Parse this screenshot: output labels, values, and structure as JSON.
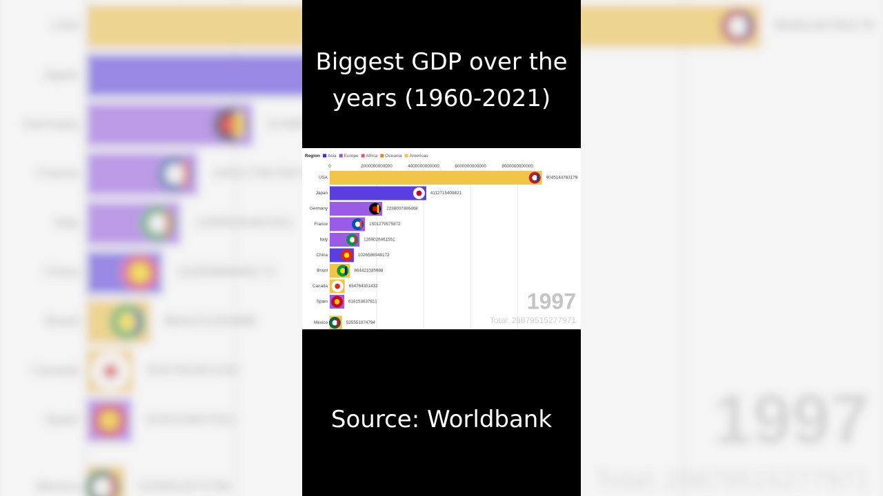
{
  "title": "Biggest GDP over the years (1960-2021)",
  "source": "Source: Worldbank",
  "chart_data": {
    "type": "bar",
    "orientation": "horizontal",
    "legend_title": "Region",
    "legend": [
      {
        "name": "Asia",
        "color": "#3a2fd0"
      },
      {
        "name": "Europe",
        "color": "#8f55e0"
      },
      {
        "name": "Africa",
        "color": "#e2577a"
      },
      {
        "name": "Oceania",
        "color": "#e8831f"
      },
      {
        "name": "Americas",
        "color": "#f2c447"
      }
    ],
    "categories": [
      "USA",
      "Japan",
      "Germany",
      "France",
      "Italy",
      "China",
      "Brazil",
      "Canada",
      "Spain",
      "Mexico"
    ],
    "values": [
      9045144783179,
      4112715409821,
      2238007386468,
      1501279575872,
      1269026461551,
      1026586948172,
      864421035988,
      634764351432,
      618153637811,
      525551974794
    ],
    "colors": [
      "#f2c447",
      "#5a3ee0",
      "#9a5ce6",
      "#9a5ce6",
      "#9a5ce6",
      "#5a3ee0",
      "#f2c447",
      "#f2c447",
      "#9a5ce6",
      "#f2c447"
    ],
    "xlim": [
      0,
      10700000000000
    ],
    "xticks": [
      0,
      2000000000000,
      4000000000000,
      6000000000000,
      8000000000000
    ],
    "grid": true,
    "year": "1997",
    "total_label": "Total:",
    "total": 28879515277971
  }
}
